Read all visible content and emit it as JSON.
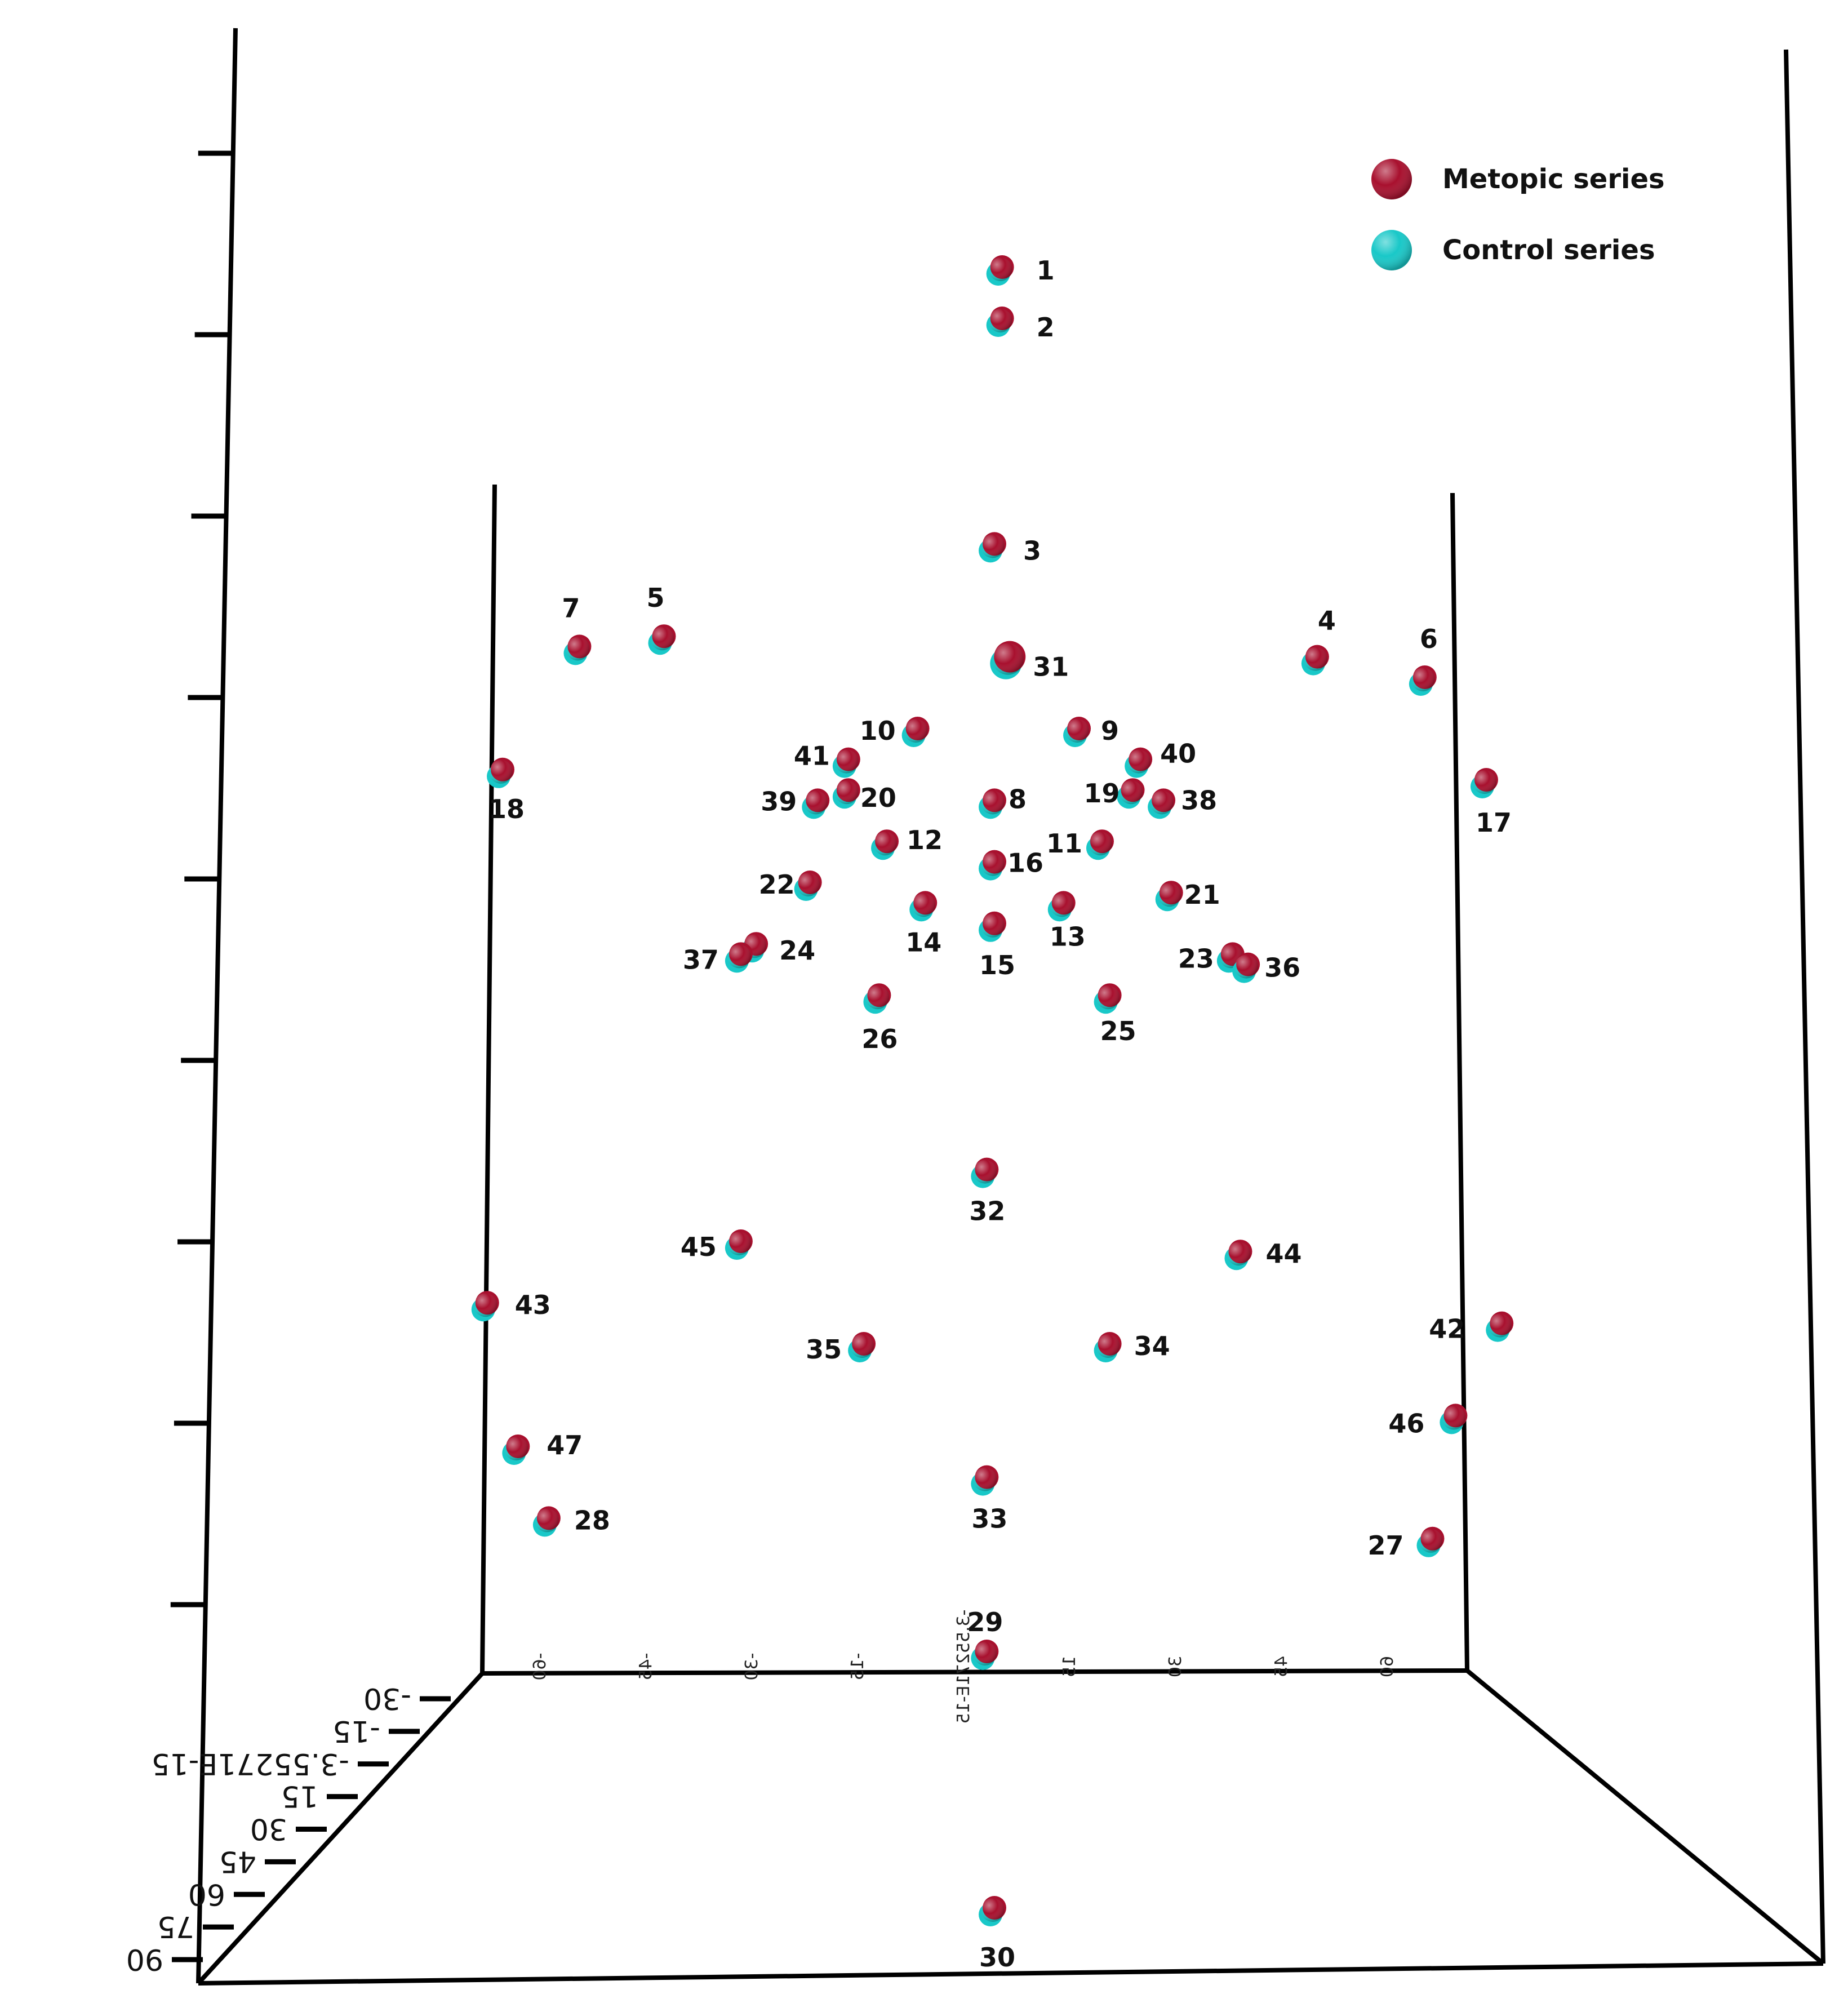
{
  "chart_data": {
    "type": "scatter",
    "projection": "3d",
    "series": [
      {
        "name": "Metopic series",
        "color": "#a8102e"
      },
      {
        "name": "Control series",
        "color": "#19c8c8"
      }
    ],
    "x_tick_labels": [
      "-60",
      "-45",
      "-30",
      "-15",
      "-3.55271E-15",
      "15",
      "30",
      "45",
      "60"
    ],
    "z_tick_labels": [
      "-30",
      "-15",
      "-3.55271E-15",
      "15",
      "30",
      "45",
      "60",
      "75",
      "90"
    ],
    "landmarks": [
      {
        "id": "1",
        "x": 1,
        "y": 135
      },
      {
        "id": "2",
        "x": 1,
        "y": 130
      },
      {
        "id": "3",
        "x": 0,
        "y": 108
      },
      {
        "id": "4",
        "x": 42,
        "y": 97
      },
      {
        "id": "5",
        "x": -43,
        "y": 99
      },
      {
        "id": "6",
        "x": 56,
        "y": 95
      },
      {
        "id": "7",
        "x": -54,
        "y": 98
      },
      {
        "id": "8",
        "x": 0,
        "y": 83
      },
      {
        "id": "9",
        "x": 11,
        "y": 90
      },
      {
        "id": "10",
        "x": -10,
        "y": 90
      },
      {
        "id": "11",
        "x": 14,
        "y": 79
      },
      {
        "id": "12",
        "x": -14,
        "y": 79
      },
      {
        "id": "13",
        "x": 9,
        "y": 73
      },
      {
        "id": "14",
        "x": -9,
        "y": 73
      },
      {
        "id": "15",
        "x": 0,
        "y": 71
      },
      {
        "id": "16",
        "x": 0,
        "y": 77
      },
      {
        "id": "17",
        "x": 64,
        "y": 85
      },
      {
        "id": "18",
        "x": -64,
        "y": 86
      },
      {
        "id": "19",
        "x": 18,
        "y": 84
      },
      {
        "id": "20",
        "x": -19,
        "y": 84
      },
      {
        "id": "21",
        "x": 23,
        "y": 74
      },
      {
        "id": "22",
        "x": -24,
        "y": 75
      },
      {
        "id": "23",
        "x": 31,
        "y": 68
      },
      {
        "id": "24",
        "x": -31,
        "y": 69
      },
      {
        "id": "25",
        "x": 15,
        "y": 64
      },
      {
        "id": "26",
        "x": -15,
        "y": 64
      },
      {
        "id": "27",
        "x": 57,
        "y": 11
      },
      {
        "id": "28",
        "x": -58,
        "y": 13
      },
      {
        "id": "29",
        "x": -1,
        "y": 0
      },
      {
        "id": "30",
        "x": 0,
        "y": -25
      },
      {
        "id": "31",
        "x": 2,
        "y": 97
      },
      {
        "id": "32",
        "x": -1,
        "y": 47
      },
      {
        "id": "33",
        "x": -1,
        "y": 17
      },
      {
        "id": "34",
        "x": 15,
        "y": 30
      },
      {
        "id": "35",
        "x": -17,
        "y": 30
      },
      {
        "id": "36",
        "x": 33,
        "y": 67
      },
      {
        "id": "37",
        "x": -33,
        "y": 68
      },
      {
        "id": "38",
        "x": 22,
        "y": 83
      },
      {
        "id": "39",
        "x": -23,
        "y": 83
      },
      {
        "id": "40",
        "x": 19,
        "y": 87
      },
      {
        "id": "41",
        "x": -19,
        "y": 87
      },
      {
        "id": "42",
        "x": 66,
        "y": 32
      },
      {
        "id": "43",
        "x": -66,
        "y": 34
      },
      {
        "id": "44",
        "x": 32,
        "y": 39
      },
      {
        "id": "45",
        "x": -33,
        "y": 40
      },
      {
        "id": "46",
        "x": 60,
        "y": 23
      },
      {
        "id": "47",
        "x": -62,
        "y": 20
      }
    ]
  }
}
